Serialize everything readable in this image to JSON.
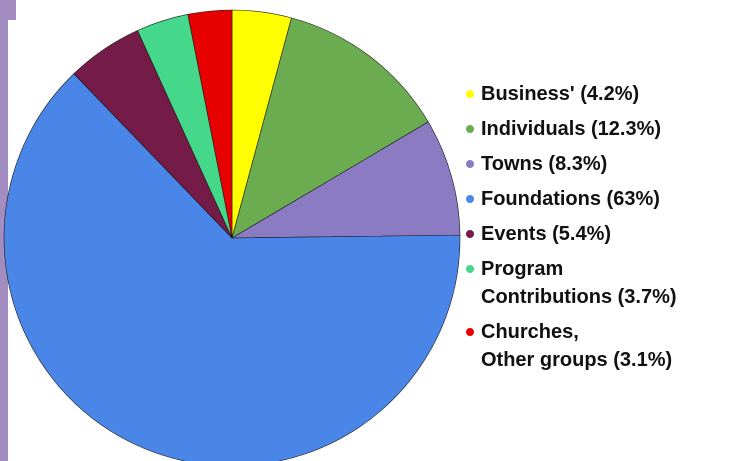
{
  "chart_data": {
    "type": "pie",
    "slices": [
      {
        "label": "Business' (4.2%)",
        "value": 4.2,
        "color": "#ffff00"
      },
      {
        "label": "Individuals (12.3%)",
        "value": 12.3,
        "color": "#6aac4f"
      },
      {
        "label": "Towns (8.3%)",
        "value": 8.3,
        "color": "#8a7bc2"
      },
      {
        "label": "Foundations (63%)",
        "value": 63,
        "color": "#4a86e8"
      },
      {
        "label": "Events (5.4%)",
        "value": 5.4,
        "color": "#741b47"
      },
      {
        "label": "Program\nContributions (3.7%)",
        "value": 3.7,
        "color": "#45d88a"
      },
      {
        "label": "Churches,\nOther groups (3.1%)",
        "value": 3.1,
        "color": "#e60000"
      }
    ],
    "start": "top",
    "direction": "clockwise",
    "legend_position": "right"
  }
}
